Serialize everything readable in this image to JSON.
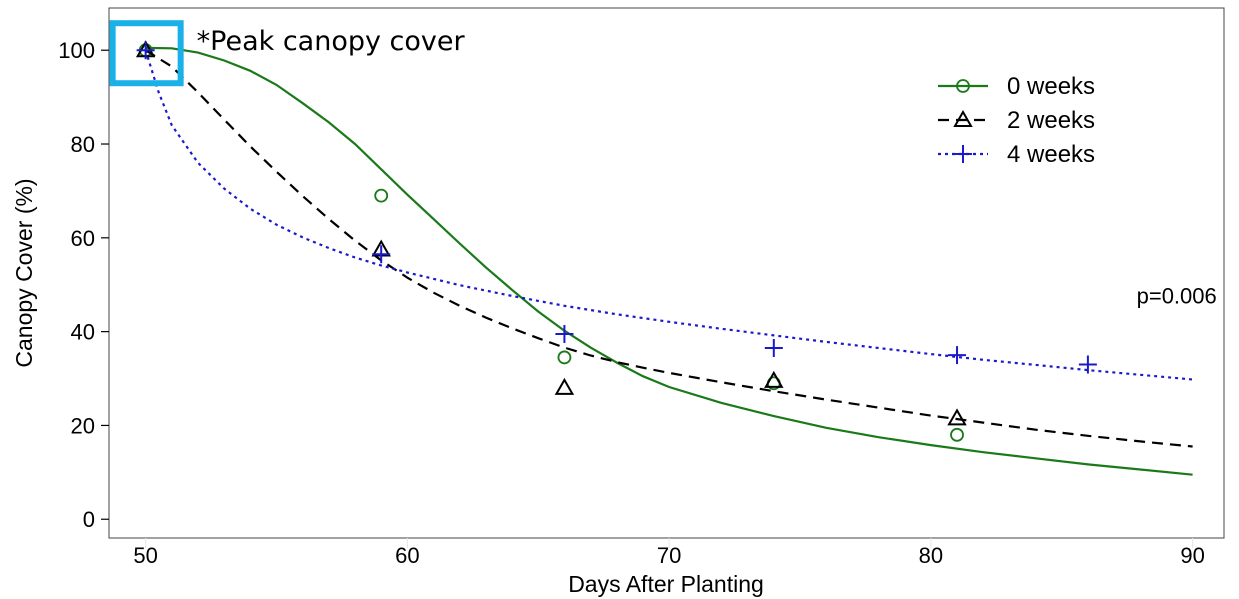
{
  "chart_data": {
    "type": "scatter",
    "title": "",
    "xlabel": "Days After Planting",
    "ylabel": "Canopy Cover (%)",
    "xlim": [
      48.6,
      91.2
    ],
    "ylim": [
      -4,
      109
    ],
    "x_ticks": [
      50,
      60,
      70,
      80,
      90
    ],
    "y_ticks": [
      0,
      20,
      40,
      60,
      80,
      100
    ],
    "x_tick_labels": [
      "50",
      "60",
      "70",
      "80",
      "90"
    ],
    "y_tick_labels": [
      "0",
      "20",
      "40",
      "60",
      "80",
      "100"
    ],
    "grid": false,
    "legend_position": "top-right",
    "series": [
      {
        "name": "0 weeks",
        "color": "#1a7a1a",
        "marker": "circle",
        "line_style": "solid",
        "points": [
          [
            50,
            100
          ],
          [
            59,
            69
          ],
          [
            66,
            34.5
          ],
          [
            74,
            29
          ],
          [
            81,
            18
          ]
        ],
        "fit": [
          [
            50,
            100.5
          ],
          [
            51,
            100.4
          ],
          [
            52,
            99.5
          ],
          [
            53,
            97.8
          ],
          [
            54,
            95.6
          ],
          [
            55,
            92.6
          ],
          [
            56,
            88.7
          ],
          [
            57,
            84.6
          ],
          [
            58,
            80
          ],
          [
            59,
            74.6
          ],
          [
            60,
            69.2
          ],
          [
            61,
            64
          ],
          [
            62,
            58.8
          ],
          [
            63,
            53.7
          ],
          [
            64,
            48.9
          ],
          [
            65,
            44.3
          ],
          [
            66,
            40.2
          ],
          [
            67,
            36.6
          ],
          [
            68,
            33.4
          ],
          [
            69,
            30.5
          ],
          [
            70,
            28.2
          ],
          [
            72,
            24.8
          ],
          [
            74,
            22
          ],
          [
            76,
            19.5
          ],
          [
            78,
            17.5
          ],
          [
            80,
            15.8
          ],
          [
            82,
            14.3
          ],
          [
            84,
            13
          ],
          [
            86,
            11.7
          ],
          [
            88,
            10.6
          ],
          [
            90,
            9.5
          ]
        ]
      },
      {
        "name": "2 weeks",
        "color": "#000000",
        "marker": "triangle",
        "line_style": "dashed",
        "points": [
          [
            50,
            100
          ],
          [
            59,
            57.5
          ],
          [
            66,
            28
          ],
          [
            74,
            29.5
          ],
          [
            81,
            21.5
          ]
        ],
        "fit": [
          [
            50,
            100
          ],
          [
            51,
            96.5
          ],
          [
            52,
            91
          ],
          [
            53,
            85.2
          ],
          [
            54,
            79.5
          ],
          [
            55,
            74.1
          ],
          [
            56,
            68.9
          ],
          [
            57,
            64
          ],
          [
            58,
            59.4
          ],
          [
            59,
            55.2
          ],
          [
            60,
            51.5
          ],
          [
            61,
            48.3
          ],
          [
            62,
            45.5
          ],
          [
            63,
            43
          ],
          [
            64,
            40.7
          ],
          [
            65,
            38.6
          ],
          [
            66,
            36.6
          ],
          [
            67,
            34.9
          ],
          [
            68,
            33.5
          ],
          [
            69,
            32.3
          ],
          [
            70,
            31.2
          ],
          [
            72,
            29.2
          ],
          [
            74,
            27.3
          ],
          [
            76,
            25.5
          ],
          [
            78,
            23.8
          ],
          [
            80,
            22.1
          ],
          [
            82,
            20.6
          ],
          [
            84,
            19.1
          ],
          [
            86,
            17.8
          ],
          [
            88,
            16.6
          ],
          [
            90,
            15.5
          ]
        ]
      },
      {
        "name": "4 weeks",
        "color": "#1a1acc",
        "marker": "plus",
        "line_style": "dotted",
        "points": [
          [
            50,
            100
          ],
          [
            59,
            56.5
          ],
          [
            66,
            39.5
          ],
          [
            74,
            36.5
          ],
          [
            81,
            35
          ],
          [
            86,
            33
          ]
        ],
        "fit": [
          [
            50,
            100
          ],
          [
            50.5,
            91
          ],
          [
            51,
            84
          ],
          [
            52,
            76
          ],
          [
            53,
            70.5
          ],
          [
            54,
            66.2
          ],
          [
            55,
            62.8
          ],
          [
            56,
            60.1
          ],
          [
            57,
            57.8
          ],
          [
            58,
            55.8
          ],
          [
            59,
            54.1
          ],
          [
            60,
            52.6
          ],
          [
            62,
            49.9
          ],
          [
            64,
            47.6
          ],
          [
            66,
            45.5
          ],
          [
            68,
            43.7
          ],
          [
            70,
            42.1
          ],
          [
            72,
            40.6
          ],
          [
            74,
            39.2
          ],
          [
            76,
            37.8
          ],
          [
            78,
            36.5
          ],
          [
            80,
            35.2
          ],
          [
            82,
            34
          ],
          [
            84,
            32.9
          ],
          [
            86,
            31.8
          ],
          [
            88,
            30.8
          ],
          [
            90,
            29.8
          ]
        ]
      }
    ],
    "annotations": {
      "p_value": {
        "text": "p=0.006",
        "x": 91,
        "y": 46
      },
      "peak_callout": {
        "text": "*Peak canopy cover",
        "x": 50,
        "y": 100,
        "box_color": "#1ab0e8"
      }
    }
  }
}
